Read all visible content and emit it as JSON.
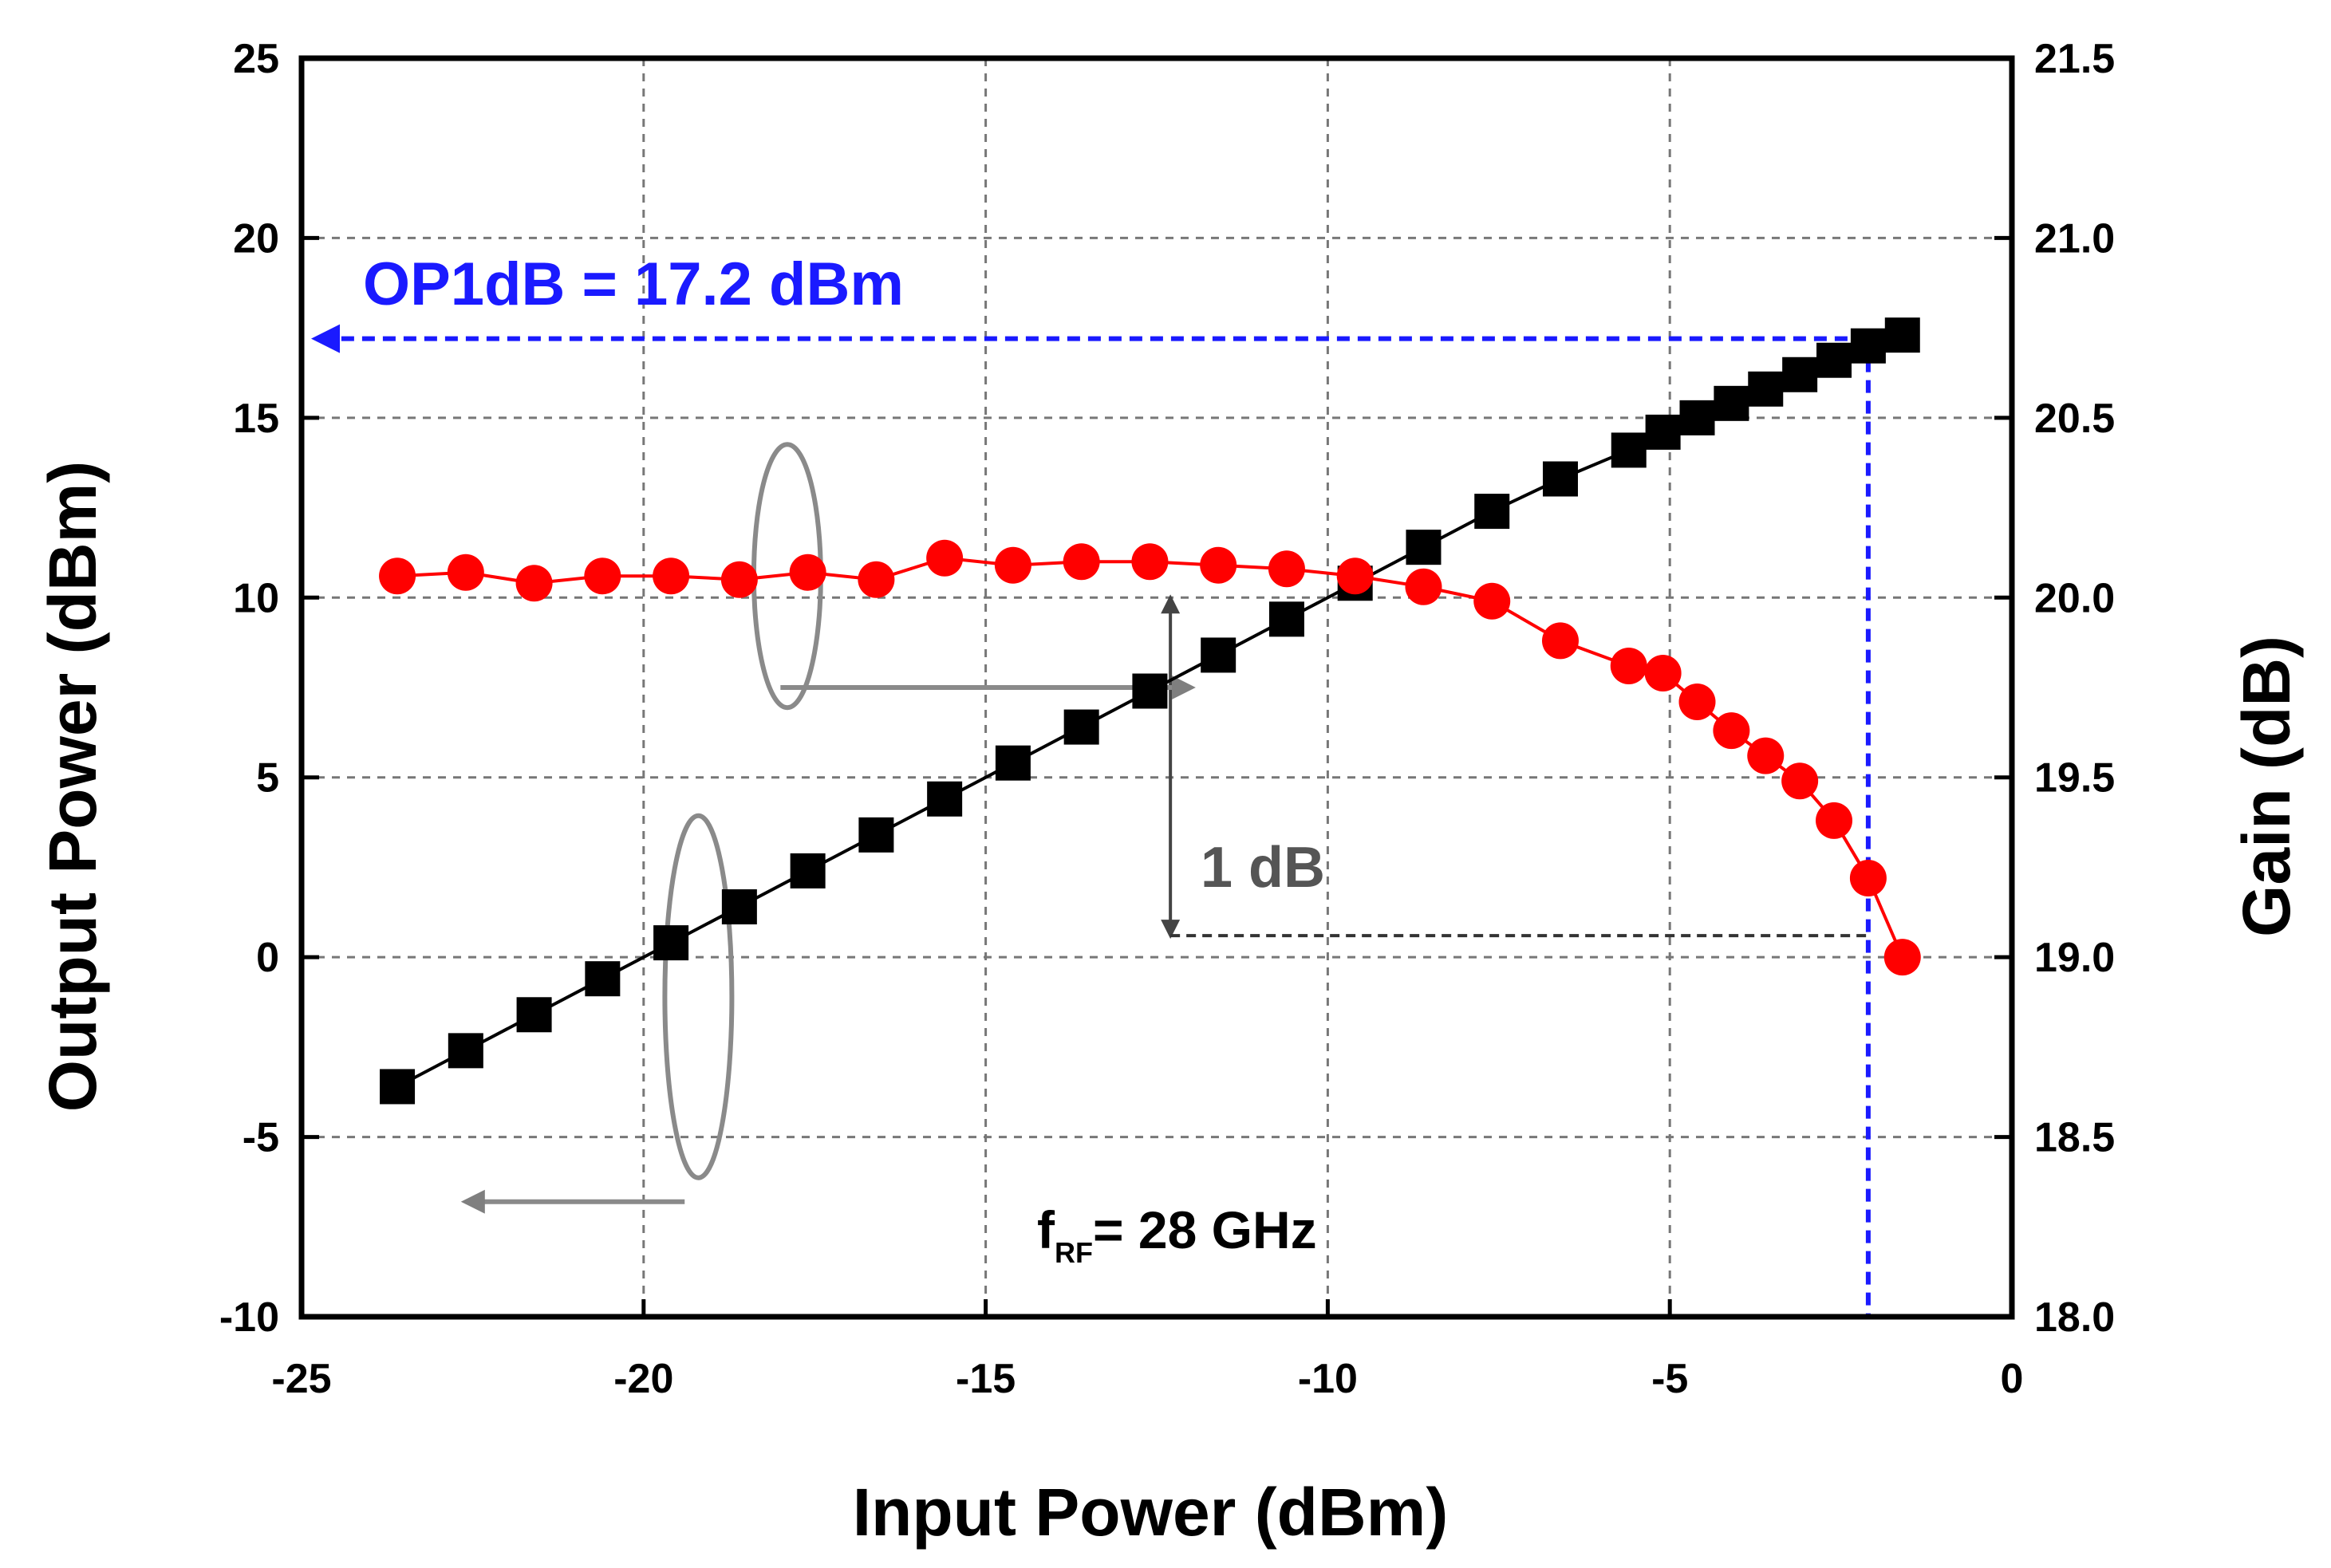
{
  "chart_data": {
    "type": "line",
    "xlabel": "Input Power (dBm)",
    "ylabel": "Output Power (dBm)",
    "y2label": "Gain (dB)",
    "xlim": [
      -25,
      0
    ],
    "ylim": [
      -10,
      25
    ],
    "y2lim": [
      18.0,
      21.5
    ],
    "x_ticks": [
      "-25",
      "-20",
      "-15",
      "-10",
      "-5",
      "0"
    ],
    "y_ticks": [
      "-10",
      "-5",
      "0",
      "5",
      "10",
      "15",
      "20",
      "25"
    ],
    "y2_ticks": [
      "18.0",
      "18.5",
      "19.0",
      "19.5",
      "20.0",
      "20.5",
      "21.0",
      "21.5"
    ],
    "grid": true,
    "series": [
      {
        "name": "Output Power",
        "axis": "left",
        "color": "#000000",
        "marker": "square",
        "x": [
          -23.6,
          -22.6,
          -21.6,
          -20.6,
          -19.6,
          -18.6,
          -17.6,
          -16.6,
          -15.6,
          -14.6,
          -13.6,
          -12.6,
          -11.6,
          -10.6,
          -9.6,
          -8.6,
          -7.6,
          -6.6,
          -5.6,
          -5.1,
          -4.6,
          -4.1,
          -3.6,
          -3.1,
          -2.6,
          -2.1,
          -1.6
        ],
        "values": [
          -3.6,
          -2.6,
          -1.6,
          -0.6,
          0.4,
          1.4,
          2.4,
          3.4,
          4.4,
          5.4,
          6.4,
          7.4,
          8.4,
          9.4,
          10.4,
          11.4,
          12.4,
          13.3,
          14.1,
          14.6,
          15.0,
          15.4,
          15.8,
          16.2,
          16.6,
          17.0,
          17.3
        ]
      },
      {
        "name": "Gain",
        "axis": "right",
        "color": "#ff0000",
        "marker": "circle",
        "x": [
          -23.6,
          -22.6,
          -21.6,
          -20.6,
          -19.6,
          -18.6,
          -17.6,
          -16.6,
          -15.6,
          -14.6,
          -13.6,
          -12.6,
          -11.6,
          -10.6,
          -9.6,
          -8.6,
          -7.6,
          -6.6,
          -5.6,
          -5.1,
          -4.6,
          -4.1,
          -3.6,
          -3.1,
          -2.6,
          -2.1,
          -1.6
        ],
        "values": [
          20.06,
          20.07,
          20.04,
          20.06,
          20.06,
          20.05,
          20.07,
          20.05,
          20.11,
          20.09,
          20.1,
          20.1,
          20.09,
          20.08,
          20.06,
          20.03,
          19.99,
          19.88,
          19.81,
          19.79,
          19.71,
          19.63,
          19.56,
          19.49,
          19.38,
          19.22,
          19.0
        ]
      }
    ],
    "annotations": {
      "op1db_text": "OP1dB = 17.2 dBm",
      "op1db_value": 17.2,
      "op1db_input": -2.1,
      "delta_text": "1 dB",
      "delta_x": -12.3,
      "delta_top": 20.0,
      "delta_bottom": 19.06,
      "freq_prefix": "f",
      "freq_sub": "RF",
      "freq_rest": "= 28 GHz"
    }
  }
}
